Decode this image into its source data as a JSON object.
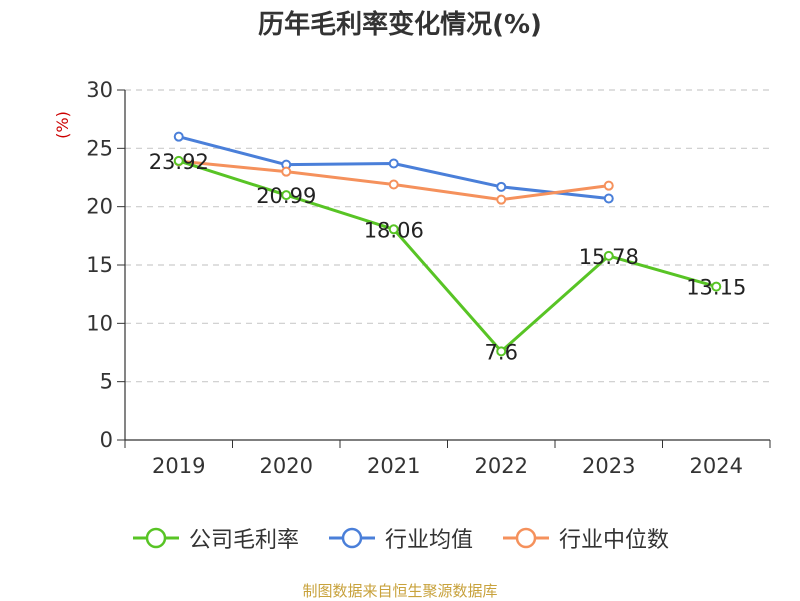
{
  "chart_data": {
    "type": "line",
    "title": "历年毛利率变化情况(%)",
    "ylabel": "(%)",
    "xlabel": "",
    "categories": [
      "2019",
      "2020",
      "2021",
      "2022",
      "2023",
      "2024"
    ],
    "ylim": [
      0,
      30
    ],
    "yticks": [
      0,
      5,
      10,
      15,
      20,
      25,
      30
    ],
    "grid": true,
    "legend_position": "bottom",
    "series": [
      {
        "name": "公司毛利率",
        "color": "#58c425",
        "values": [
          23.92,
          20.99,
          18.06,
          7.6,
          15.78,
          13.15
        ],
        "labels": [
          "23.92",
          "20.99",
          "18.06",
          "7.6",
          "15.78",
          "13.15"
        ]
      },
      {
        "name": "行业均值",
        "color": "#4a7fd9",
        "values": [
          26.0,
          23.6,
          23.7,
          21.7,
          20.7,
          null
        ]
      },
      {
        "name": "行业中位数",
        "color": "#f5915c",
        "values": [
          23.9,
          23.0,
          21.9,
          20.6,
          21.8,
          null
        ]
      }
    ]
  },
  "source": "制图数据来自恒生聚源数据库"
}
